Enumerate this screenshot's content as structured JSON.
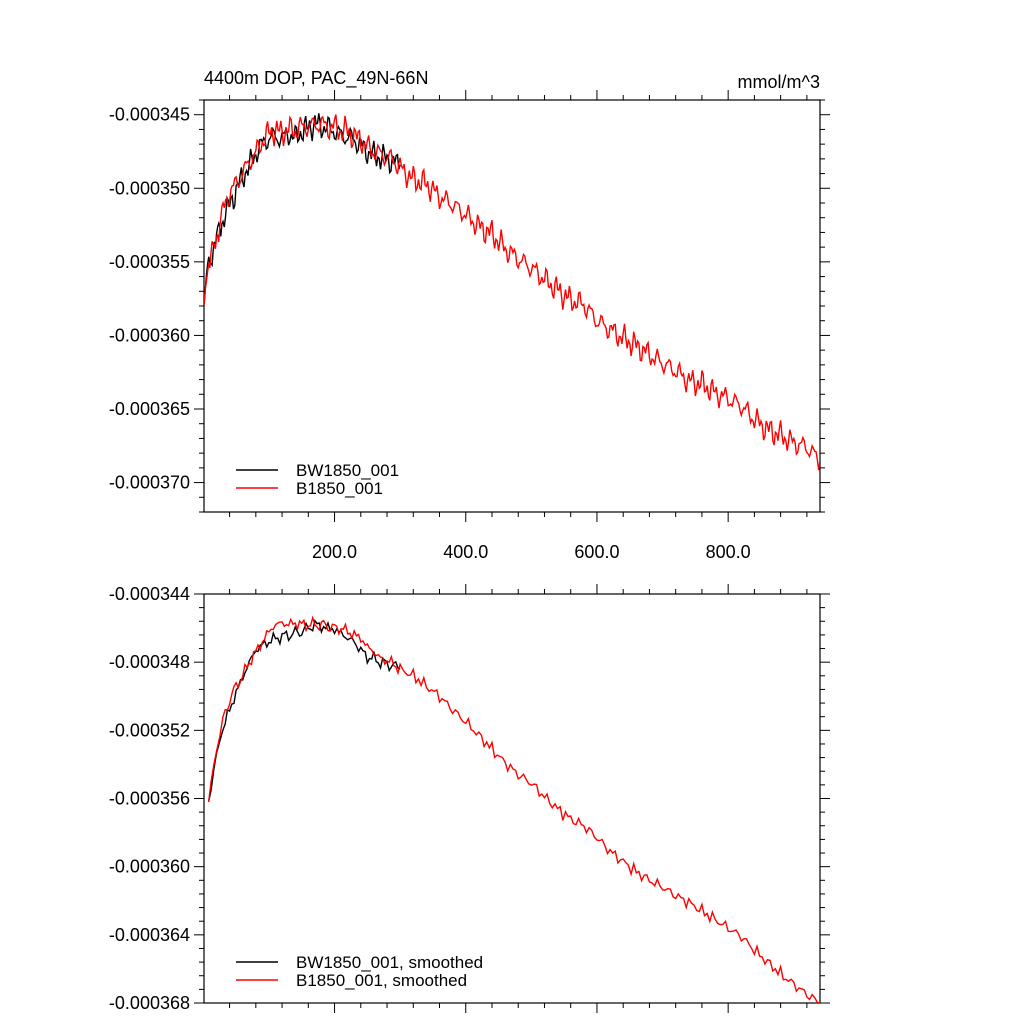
{
  "figure": {
    "title_left": "4400m DOP, PAC_49N-66N",
    "title_right": "mmol/m^3"
  },
  "colors": {
    "bw": "#000000",
    "b": "#ff0000",
    "frame": "#000000"
  },
  "chart_data": [
    {
      "type": "line",
      "title": "4400m DOP, PAC_49N-66N",
      "units": "mmol/m^3",
      "xlim": [
        1,
        940
      ],
      "ylim": [
        -0.000372,
        -0.000344
      ],
      "xticks": [
        200,
        400,
        600,
        800
      ],
      "xtick_labels": [
        "200.0",
        "400.0",
        "600.0",
        "800.0"
      ],
      "yticks": [
        -0.000345,
        -0.00035,
        -0.000355,
        -0.00036,
        -0.000365,
        -0.00037
      ],
      "ytick_labels": [
        "-0.000345",
        "-0.000350",
        "-0.000355",
        "-0.000360",
        "-0.000365",
        "-0.000370"
      ],
      "legend": [
        "BW1850_001",
        "B1850_001"
      ],
      "legend_position": "bottom-left",
      "series": [
        {
          "name": "BW1850_001",
          "color": "#000000",
          "x": [
            1,
            5,
            10,
            15,
            20,
            25,
            30,
            40,
            50,
            60,
            70,
            80,
            90,
            100,
            110,
            120,
            130,
            140,
            150,
            160,
            170,
            180,
            190,
            200,
            210,
            220,
            230,
            240,
            250,
            260,
            270,
            280,
            290,
            300
          ],
          "y": [
            -0.000358,
            -0.0003557,
            -0.0003548,
            -0.0003542,
            -0.0003535,
            -0.0003527,
            -0.0003521,
            -0.0003511,
            -0.0003502,
            -0.0003492,
            -0.0003485,
            -0.0003476,
            -0.000347,
            -0.0003466,
            -0.0003465,
            -0.0003466,
            -0.0003463,
            -0.0003466,
            -0.0003461,
            -0.0003459,
            -0.0003456,
            -0.0003458,
            -0.0003459,
            -0.0003461,
            -0.0003464,
            -0.0003465,
            -0.0003467,
            -0.0003471,
            -0.0003475,
            -0.0003478,
            -0.0003479,
            -0.000348,
            -0.0003482,
            -0.0003484
          ]
        },
        {
          "name": "B1850_001",
          "color": "#ff0000",
          "x": [
            1,
            5,
            10,
            15,
            20,
            25,
            30,
            40,
            50,
            60,
            70,
            80,
            90,
            100,
            110,
            120,
            130,
            140,
            150,
            160,
            170,
            180,
            190,
            200,
            210,
            220,
            230,
            240,
            250,
            260,
            270,
            280,
            290,
            300,
            320,
            340,
            360,
            380,
            400,
            420,
            440,
            460,
            480,
            500,
            520,
            540,
            560,
            580,
            600,
            620,
            640,
            660,
            680,
            700,
            720,
            740,
            760,
            780,
            800,
            820,
            840,
            860,
            880,
            900,
            920,
            940
          ],
          "y": [
            -0.000358,
            -0.0003557,
            -0.000355,
            -0.0003542,
            -0.0003533,
            -0.0003525,
            -0.0003515,
            -0.0003503,
            -0.0003497,
            -0.000349,
            -0.0003482,
            -0.0003476,
            -0.0003468,
            -0.0003462,
            -0.0003461,
            -0.0003462,
            -0.000346,
            -0.0003461,
            -0.0003458,
            -0.0003458,
            -0.0003457,
            -0.0003456,
            -0.0003459,
            -0.0003458,
            -0.0003461,
            -0.0003461,
            -0.0003465,
            -0.0003467,
            -0.0003472,
            -0.0003475,
            -0.0003477,
            -0.0003479,
            -0.0003481,
            -0.0003486,
            -0.0003494,
            -0.0003497,
            -0.0003506,
            -0.0003511,
            -0.0003518,
            -0.0003526,
            -0.0003531,
            -0.0003541,
            -0.0003548,
            -0.0003554,
            -0.0003562,
            -0.0003569,
            -0.0003576,
            -0.0003579,
            -0.000359,
            -0.0003596,
            -0.0003602,
            -0.0003607,
            -0.0003613,
            -0.0003619,
            -0.0003624,
            -0.0003631,
            -0.0003633,
            -0.0003639,
            -0.0003643,
            -0.0003648,
            -0.0003657,
            -0.0003664,
            -0.0003668,
            -0.0003673,
            -0.0003676,
            -0.0003685
          ]
        }
      ]
    },
    {
      "type": "line",
      "xlim": [
        1,
        940
      ],
      "ylim": [
        -0.000368,
        -0.000344
      ],
      "yticks": [
        -0.000344,
        -0.000348,
        -0.000352,
        -0.000356,
        -0.00036,
        -0.000364,
        -0.000368
      ],
      "ytick_labels": [
        "-0.000344",
        "-0.000348",
        "-0.000352",
        "-0.000356",
        "-0.000360",
        "-0.000364",
        "-0.000368"
      ],
      "legend": [
        "BW1850_001, smoothed",
        "B1850_001, smoothed"
      ],
      "legend_position": "bottom-left",
      "series": [
        {
          "name": "BW1850_001, smoothed",
          "color": "#000000",
          "x": [
            8,
            12,
            16,
            20,
            25,
            30,
            40,
            50,
            60,
            70,
            80,
            90,
            100,
            110,
            120,
            130,
            140,
            150,
            160,
            170,
            180,
            190,
            200,
            210,
            220,
            230,
            240,
            250,
            260,
            270,
            280,
            290,
            300
          ],
          "y": [
            -0.0003562,
            -0.0003552,
            -0.0003543,
            -0.0003535,
            -0.0003527,
            -0.0003519,
            -0.0003508,
            -0.0003498,
            -0.0003489,
            -0.000348,
            -0.0003473,
            -0.000347,
            -0.0003468,
            -0.0003466,
            -0.0003465,
            -0.0003464,
            -0.0003463,
            -0.0003462,
            -0.000346,
            -0.0003458,
            -0.0003459,
            -0.000346,
            -0.0003461,
            -0.0003463,
            -0.0003466,
            -0.0003468,
            -0.0003473,
            -0.0003477,
            -0.0003478,
            -0.000348,
            -0.0003481,
            -0.0003482,
            -0.0003484
          ]
        },
        {
          "name": "B1850_001, smoothed",
          "color": "#ff0000",
          "x": [
            8,
            12,
            16,
            20,
            25,
            30,
            40,
            50,
            60,
            70,
            80,
            90,
            100,
            110,
            120,
            130,
            140,
            150,
            160,
            170,
            180,
            190,
            200,
            210,
            220,
            230,
            240,
            250,
            260,
            270,
            280,
            290,
            300,
            320,
            340,
            360,
            380,
            400,
            420,
            440,
            460,
            480,
            500,
            520,
            540,
            560,
            580,
            600,
            620,
            640,
            660,
            680,
            700,
            720,
            740,
            760,
            780,
            800,
            820,
            840,
            860,
            880,
            900,
            920,
            940
          ],
          "y": [
            -0.0003562,
            -0.0003551,
            -0.0003541,
            -0.0003532,
            -0.0003523,
            -0.0003514,
            -0.0003502,
            -0.0003494,
            -0.0003488,
            -0.000348,
            -0.0003474,
            -0.0003468,
            -0.0003462,
            -0.0003458,
            -0.0003457,
            -0.0003458,
            -0.0003457,
            -0.0003458,
            -0.0003458,
            -0.0003458,
            -0.0003458,
            -0.0003459,
            -0.000346,
            -0.000346,
            -0.0003462,
            -0.0003464,
            -0.0003466,
            -0.0003471,
            -0.0003474,
            -0.0003478,
            -0.0003479,
            -0.0003481,
            -0.0003484,
            -0.0003488,
            -0.0003494,
            -0.00035,
            -0.0003508,
            -0.0003515,
            -0.0003523,
            -0.0003531,
            -0.0003539,
            -0.0003546,
            -0.0003551,
            -0.0003559,
            -0.0003566,
            -0.0003572,
            -0.0003576,
            -0.0003583,
            -0.0003591,
            -0.0003597,
            -0.0003603,
            -0.0003608,
            -0.0003612,
            -0.0003617,
            -0.0003621,
            -0.0003626,
            -0.0003631,
            -0.0003636,
            -0.0003641,
            -0.0003649,
            -0.0003656,
            -0.0003663,
            -0.0003669,
            -0.0003675,
            -0.000368
          ]
        }
      ]
    }
  ]
}
